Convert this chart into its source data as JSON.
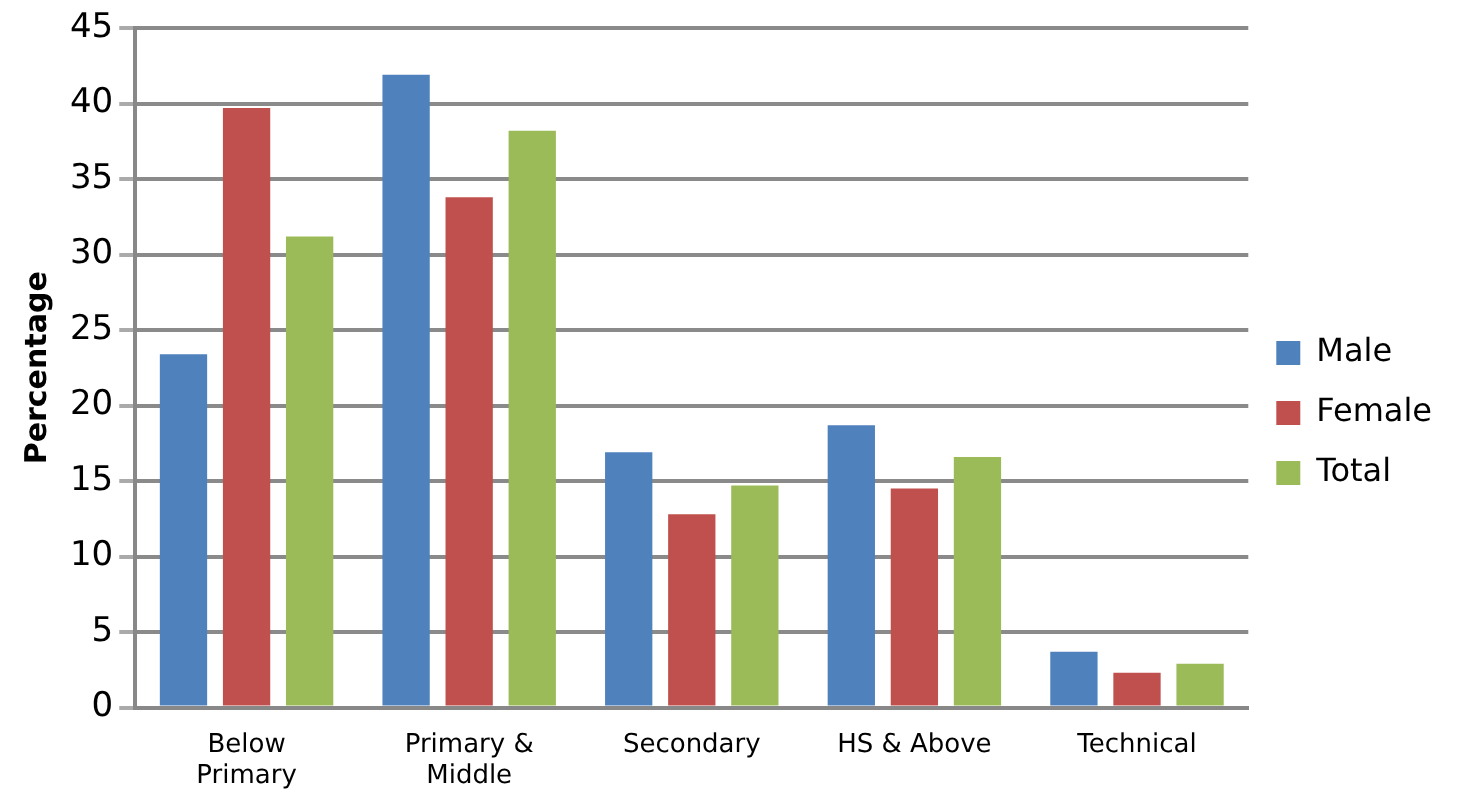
{
  "chart_data": {
    "type": "bar",
    "ylabel": "Percentage",
    "categories": [
      "Below Primary",
      "Primary & Middle",
      "Secondary",
      "HS & Above",
      "Technical"
    ],
    "series": [
      {
        "name": "Male",
        "color": "#4f81bd",
        "values": [
          23.4,
          41.9,
          16.9,
          18.7,
          3.7
        ]
      },
      {
        "name": "Female",
        "color": "#c0504d",
        "values": [
          39.7,
          33.8,
          12.8,
          14.5,
          2.3
        ]
      },
      {
        "name": "Total",
        "color": "#9bbb59",
        "values": [
          31.2,
          38.2,
          14.7,
          16.6,
          2.9
        ]
      }
    ],
    "ylim": [
      0,
      45
    ],
    "yticks": [
      0,
      5,
      10,
      15,
      20,
      25,
      30,
      35,
      40,
      45
    ],
    "grid": "y",
    "legend": "right"
  }
}
